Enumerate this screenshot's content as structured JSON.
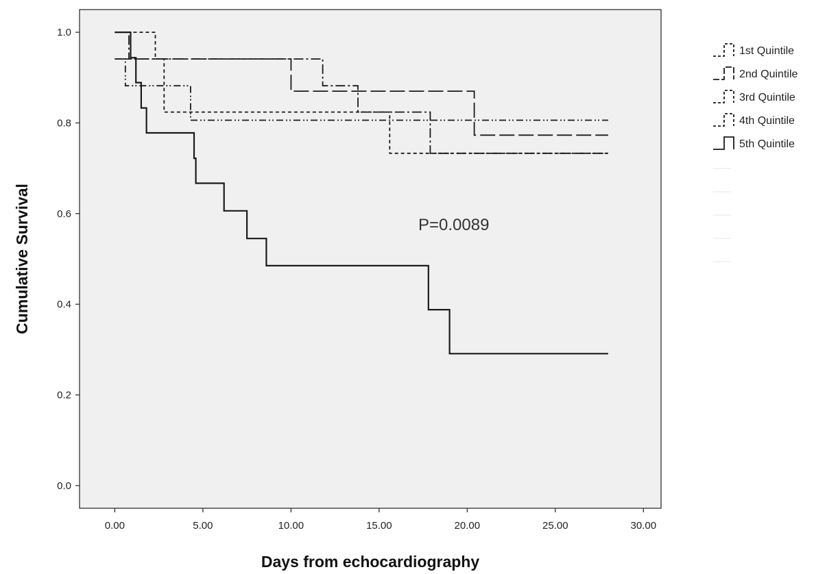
{
  "chart_data": {
    "type": "line",
    "step": true,
    "xlabel": "Days from echocardiography",
    "ylabel": "Cumulative Survival",
    "xlim": [
      -2,
      31
    ],
    "ylim": [
      -0.05,
      1.05
    ],
    "xticks": [
      0,
      5,
      10,
      15,
      20,
      25,
      30
    ],
    "xtick_labels": [
      "0.00",
      "5.00",
      "10.00",
      "15.00",
      "20.00",
      "25.00",
      "30.00"
    ],
    "yticks": [
      0.0,
      0.2,
      0.4,
      0.6,
      0.8,
      1.0
    ],
    "ytick_labels": [
      "0.0",
      "0.2",
      "0.4",
      "0.6",
      "0.8",
      "1.0"
    ],
    "plot_background": "#f0f0f0",
    "annotation": "P=0.0089",
    "legend_position": "right",
    "series": [
      {
        "name": "1st Quintile",
        "dash": "5,4",
        "points": [
          [
            0,
            1.0
          ],
          [
            2.3,
            1.0
          ],
          [
            2.3,
            0.941
          ],
          [
            2.8,
            0.941
          ],
          [
            2.8,
            0.824
          ],
          [
            15.6,
            0.824
          ],
          [
            15.6,
            0.733
          ],
          [
            28,
            0.733
          ]
        ]
      },
      {
        "name": "2nd Quintile",
        "dash": "22,6",
        "points": [
          [
            0,
            0.941
          ],
          [
            10.0,
            0.941
          ],
          [
            10.0,
            0.87
          ],
          [
            20.4,
            0.87
          ],
          [
            20.4,
            0.773
          ],
          [
            28,
            0.773
          ]
        ]
      },
      {
        "name": "3rd Quintile",
        "dash": "14,4,3,4",
        "points": [
          [
            0,
            1.0
          ],
          [
            0.8,
            1.0
          ],
          [
            0.8,
            0.941
          ],
          [
            11.8,
            0.941
          ],
          [
            11.8,
            0.882
          ],
          [
            13.8,
            0.882
          ],
          [
            13.8,
            0.824
          ],
          [
            17.9,
            0.824
          ],
          [
            17.9,
            0.733
          ],
          [
            28,
            0.733
          ]
        ]
      },
      {
        "name": "4th Quintile",
        "dash": "10,4,2,3,2,4",
        "points": [
          [
            0,
            0.941
          ],
          [
            0.6,
            0.941
          ],
          [
            0.6,
            0.882
          ],
          [
            4.3,
            0.882
          ],
          [
            4.3,
            0.806
          ],
          [
            28,
            0.806
          ]
        ]
      },
      {
        "name": "5th Quintile",
        "dash": "",
        "points": [
          [
            0,
            1.0
          ],
          [
            0.9,
            1.0
          ],
          [
            0.9,
            0.944
          ],
          [
            1.2,
            0.944
          ],
          [
            1.2,
            0.889
          ],
          [
            1.5,
            0.889
          ],
          [
            1.5,
            0.833
          ],
          [
            1.8,
            0.833
          ],
          [
            1.8,
            0.778
          ],
          [
            4.5,
            0.778
          ],
          [
            4.5,
            0.722
          ],
          [
            4.6,
            0.722
          ],
          [
            4.6,
            0.667
          ],
          [
            6.2,
            0.667
          ],
          [
            6.2,
            0.606
          ],
          [
            7.5,
            0.606
          ],
          [
            7.5,
            0.545
          ],
          [
            8.6,
            0.545
          ],
          [
            8.6,
            0.485
          ],
          [
            17.8,
            0.485
          ],
          [
            17.8,
            0.388
          ],
          [
            19.0,
            0.388
          ],
          [
            19.0,
            0.291
          ],
          [
            28,
            0.291
          ]
        ]
      }
    ]
  }
}
